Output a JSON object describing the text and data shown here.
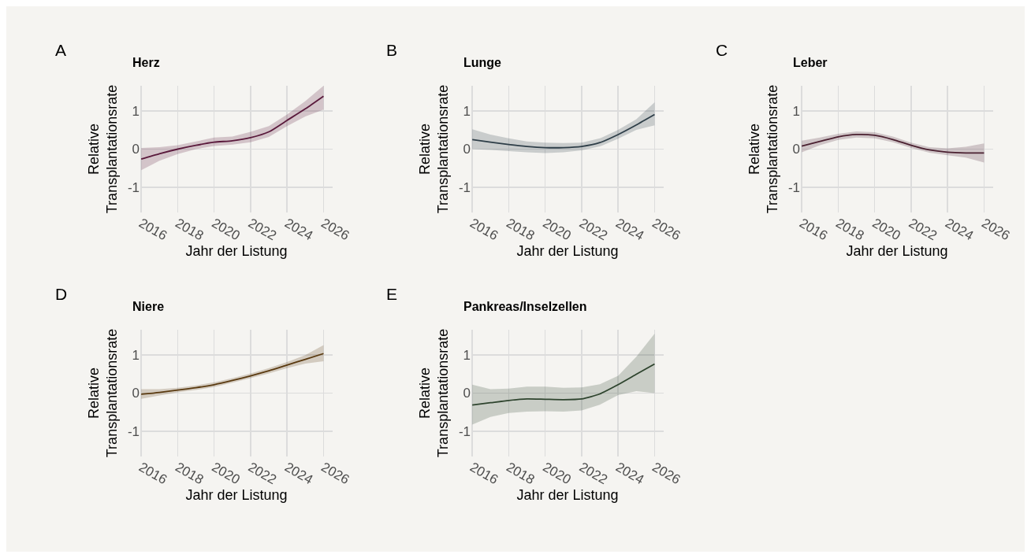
{
  "chart_data": [
    {
      "type": "line",
      "title": "Herz",
      "annotations": [
        "A"
      ],
      "xlabel": "Jahr der Listung",
      "ylabel": "Relative Transplantationsrate",
      "x": [
        2016,
        2017,
        2018,
        2019,
        2020,
        2021,
        2022,
        2023,
        2024,
        2025,
        2026
      ],
      "xlim": [
        2015.95,
        2026.5
      ],
      "ylim": [
        -1.65,
        1.65
      ],
      "xticks": [
        2016,
        2018,
        2020,
        2022,
        2024,
        2026
      ],
      "yticks": [
        -1,
        0,
        1
      ],
      "grid": true,
      "series": [
        {
          "color": "#5a1a3c",
          "values": [
            -0.26,
            -0.12,
            0.0,
            0.1,
            0.18,
            0.22,
            0.3,
            0.45,
            0.75,
            1.05,
            1.38
          ],
          "lower": [
            -0.55,
            -0.3,
            -0.13,
            0.0,
            0.08,
            0.12,
            0.18,
            0.32,
            0.6,
            0.85,
            1.03
          ],
          "upper": [
            0.03,
            0.05,
            0.1,
            0.2,
            0.3,
            0.33,
            0.45,
            0.6,
            0.9,
            1.25,
            1.65
          ]
        }
      ]
    },
    {
      "type": "line",
      "title": "Lunge",
      "annotations": [
        "B"
      ],
      "xlabel": "Jahr der Listung",
      "ylabel": "Relative Transplantationsrate",
      "x": [
        2016,
        2017,
        2018,
        2019,
        2020,
        2021,
        2022,
        2023,
        2024,
        2025,
        2026
      ],
      "xlim": [
        2015.95,
        2026.5
      ],
      "ylim": [
        -1.65,
        1.65
      ],
      "xticks": [
        2016,
        2018,
        2020,
        2022,
        2024,
        2026
      ],
      "yticks": [
        -1,
        0,
        1
      ],
      "grid": true,
      "series": [
        {
          "color": "#2e3e48",
          "values": [
            0.25,
            0.18,
            0.12,
            0.07,
            0.04,
            0.04,
            0.07,
            0.17,
            0.38,
            0.63,
            0.9
          ],
          "lower": [
            0.0,
            -0.02,
            -0.05,
            -0.08,
            -0.1,
            -0.08,
            -0.03,
            0.07,
            0.27,
            0.5,
            0.62
          ],
          "upper": [
            0.52,
            0.38,
            0.28,
            0.2,
            0.17,
            0.16,
            0.17,
            0.28,
            0.5,
            0.78,
            1.22
          ]
        }
      ]
    },
    {
      "type": "line",
      "title": "Leber",
      "annotations": [
        "C"
      ],
      "xlabel": "Jahr der Listung",
      "ylabel": "Relative Transplantationsrate",
      "x": [
        2016,
        2017,
        2018,
        2019,
        2020,
        2021,
        2022,
        2023,
        2024,
        2025,
        2026
      ],
      "xlim": [
        2015.95,
        2026.5
      ],
      "ylim": [
        -1.65,
        1.65
      ],
      "xticks": [
        2016,
        2018,
        2020,
        2022,
        2024,
        2026
      ],
      "yticks": [
        -1,
        0,
        1
      ],
      "grid": true,
      "series": [
        {
          "color": "#4a2030",
          "values": [
            0.08,
            0.2,
            0.32,
            0.38,
            0.36,
            0.25,
            0.1,
            -0.02,
            -0.08,
            -0.1,
            -0.1
          ],
          "lower": [
            -0.08,
            0.1,
            0.24,
            0.3,
            0.28,
            0.18,
            0.03,
            -0.09,
            -0.16,
            -0.22,
            -0.35
          ],
          "upper": [
            0.22,
            0.3,
            0.4,
            0.46,
            0.44,
            0.33,
            0.17,
            0.05,
            0.02,
            0.06,
            0.15
          ]
        }
      ]
    },
    {
      "type": "line",
      "title": "Niere",
      "annotations": [
        "D"
      ],
      "xlabel": "Jahr der Listung",
      "ylabel": "Relative Transplantationsrate",
      "x": [
        2016,
        2017,
        2018,
        2019,
        2020,
        2021,
        2022,
        2023,
        2024,
        2025,
        2026
      ],
      "xlim": [
        2015.95,
        2026.5
      ],
      "ylim": [
        -1.65,
        1.65
      ],
      "xticks": [
        2016,
        2018,
        2020,
        2022,
        2024,
        2026
      ],
      "yticks": [
        -1,
        0,
        1
      ],
      "grid": true,
      "series": [
        {
          "color": "#5a3a10",
          "values": [
            -0.03,
            0.02,
            0.08,
            0.14,
            0.22,
            0.33,
            0.45,
            0.58,
            0.73,
            0.88,
            1.03
          ],
          "lower": [
            -0.15,
            -0.06,
            0.02,
            0.08,
            0.16,
            0.27,
            0.39,
            0.51,
            0.65,
            0.77,
            0.83
          ],
          "upper": [
            0.1,
            0.1,
            0.14,
            0.2,
            0.28,
            0.39,
            0.51,
            0.65,
            0.81,
            0.99,
            1.25
          ]
        }
      ]
    },
    {
      "type": "line",
      "title": "Pankreas/Inselzellen",
      "annotations": [
        "E"
      ],
      "xlabel": "Jahr der Listung",
      "ylabel": "Relative Transplantationsrate",
      "x": [
        2016,
        2017,
        2018,
        2019,
        2020,
        2021,
        2022,
        2023,
        2024,
        2025,
        2026
      ],
      "xlim": [
        2015.95,
        2026.5
      ],
      "ylim": [
        -1.65,
        1.65
      ],
      "xticks": [
        2016,
        2018,
        2020,
        2022,
        2024,
        2026
      ],
      "yticks": [
        -1,
        0,
        1
      ],
      "grid": true,
      "series": [
        {
          "color": "#2e442e",
          "values": [
            -0.31,
            -0.25,
            -0.19,
            -0.15,
            -0.16,
            -0.17,
            -0.15,
            -0.02,
            0.22,
            0.49,
            0.76
          ],
          "lower": [
            -0.82,
            -0.62,
            -0.52,
            -0.48,
            -0.47,
            -0.48,
            -0.45,
            -0.3,
            -0.05,
            0.05,
            0.0
          ],
          "upper": [
            0.22,
            0.1,
            0.12,
            0.17,
            0.17,
            0.14,
            0.15,
            0.23,
            0.45,
            0.95,
            1.55
          ]
        }
      ]
    }
  ]
}
